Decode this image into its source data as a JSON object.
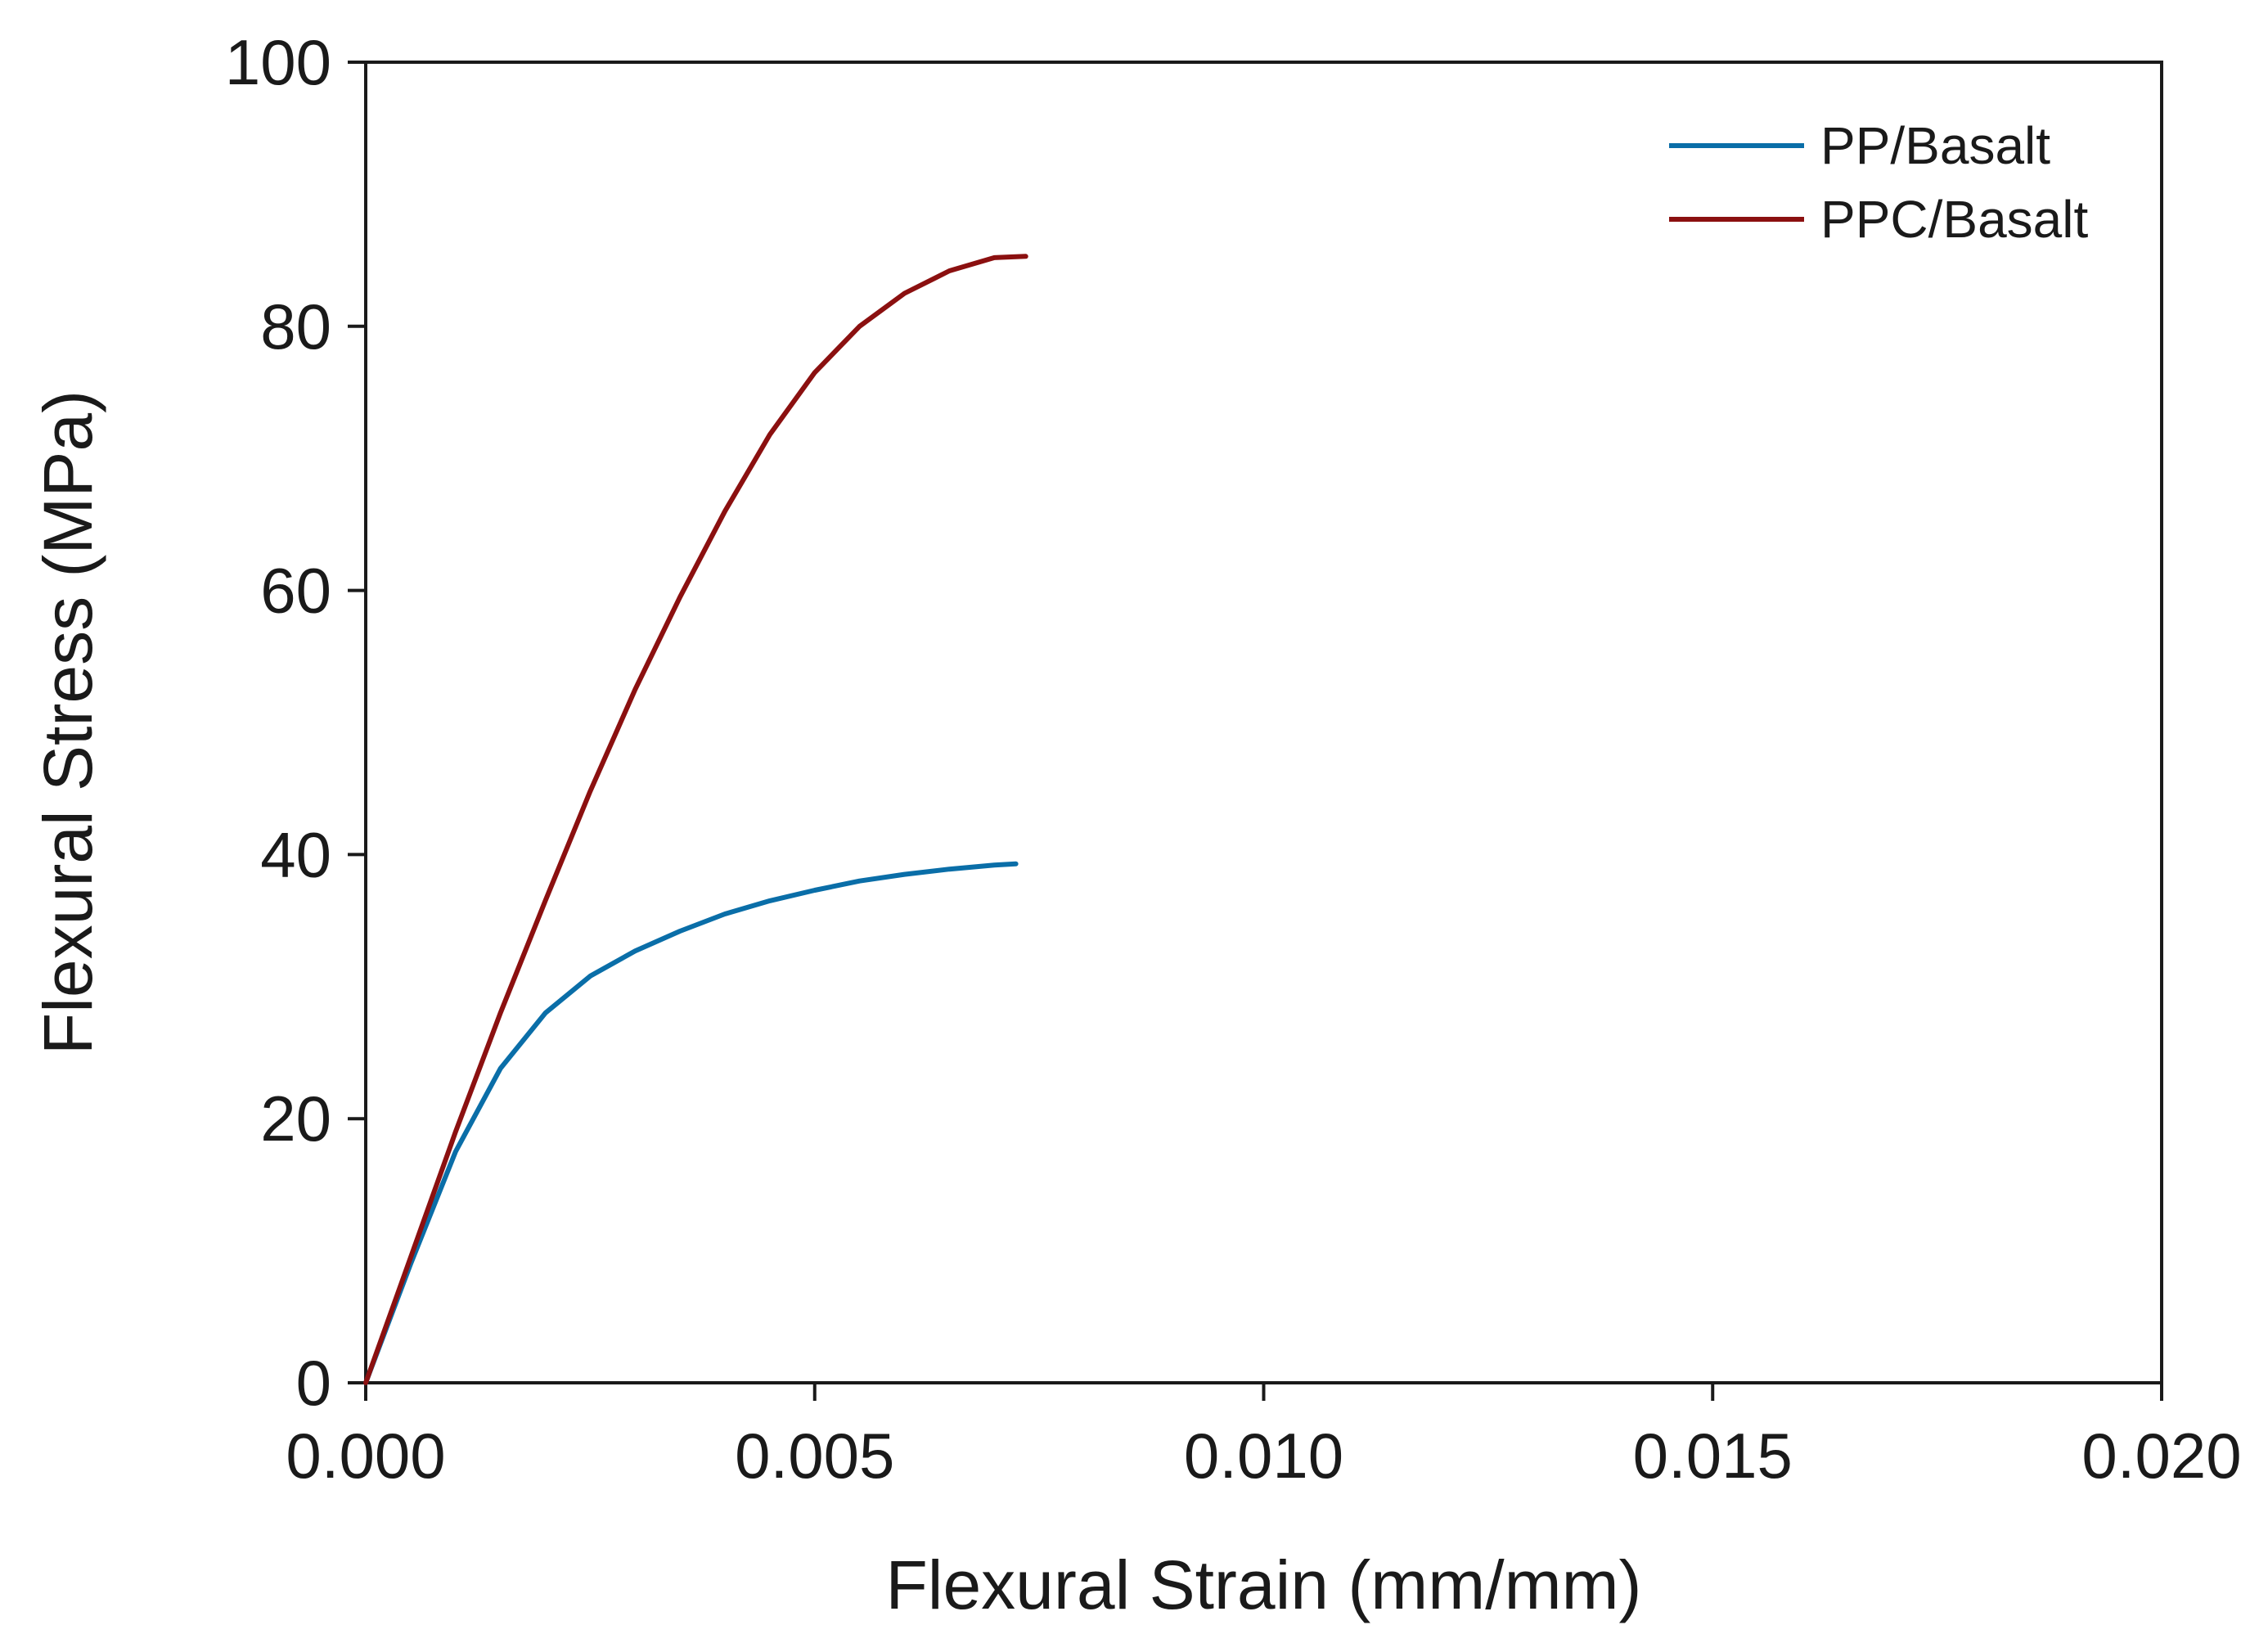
{
  "chart_data": {
    "type": "line",
    "title": "",
    "xlabel": "Flexural Strain (mm/mm)",
    "ylabel": "Flexural Stress (MPa)",
    "xlim": [
      0.0,
      0.02
    ],
    "ylim": [
      0,
      100
    ],
    "xticks": [
      0.0,
      0.005,
      0.01,
      0.015,
      0.02
    ],
    "xtick_labels": [
      "0.000",
      "0.005",
      "0.010",
      "0.015",
      "0.020"
    ],
    "yticks": [
      0,
      20,
      40,
      60,
      80,
      100
    ],
    "ytick_labels": [
      "0",
      "20",
      "40",
      "60",
      "80",
      "100"
    ],
    "grid": false,
    "legend_position": "top-right",
    "series": [
      {
        "name": "PP/Basalt",
        "color": "#0a6ea8",
        "x": [
          0.0,
          0.0005,
          0.001,
          0.0015,
          0.002,
          0.0025,
          0.003,
          0.0035,
          0.004,
          0.0045,
          0.005,
          0.0055,
          0.006,
          0.0065,
          0.007,
          0.00724
        ],
        "y": [
          0,
          9,
          17.5,
          23.8,
          28.0,
          30.8,
          32.7,
          34.2,
          35.5,
          36.5,
          37.3,
          38.0,
          38.5,
          38.9,
          39.2,
          39.3
        ]
      },
      {
        "name": "PPC/Basalt",
        "color": "#8b1010",
        "x": [
          0.0,
          0.0005,
          0.001,
          0.0015,
          0.002,
          0.0025,
          0.003,
          0.0035,
          0.004,
          0.0045,
          0.005,
          0.0055,
          0.006,
          0.0065,
          0.007,
          0.00735
        ],
        "y": [
          0,
          9.5,
          19.0,
          28.0,
          36.5,
          44.8,
          52.5,
          59.5,
          66.0,
          71.8,
          76.5,
          80.0,
          82.5,
          84.2,
          85.2,
          85.3
        ]
      }
    ]
  }
}
